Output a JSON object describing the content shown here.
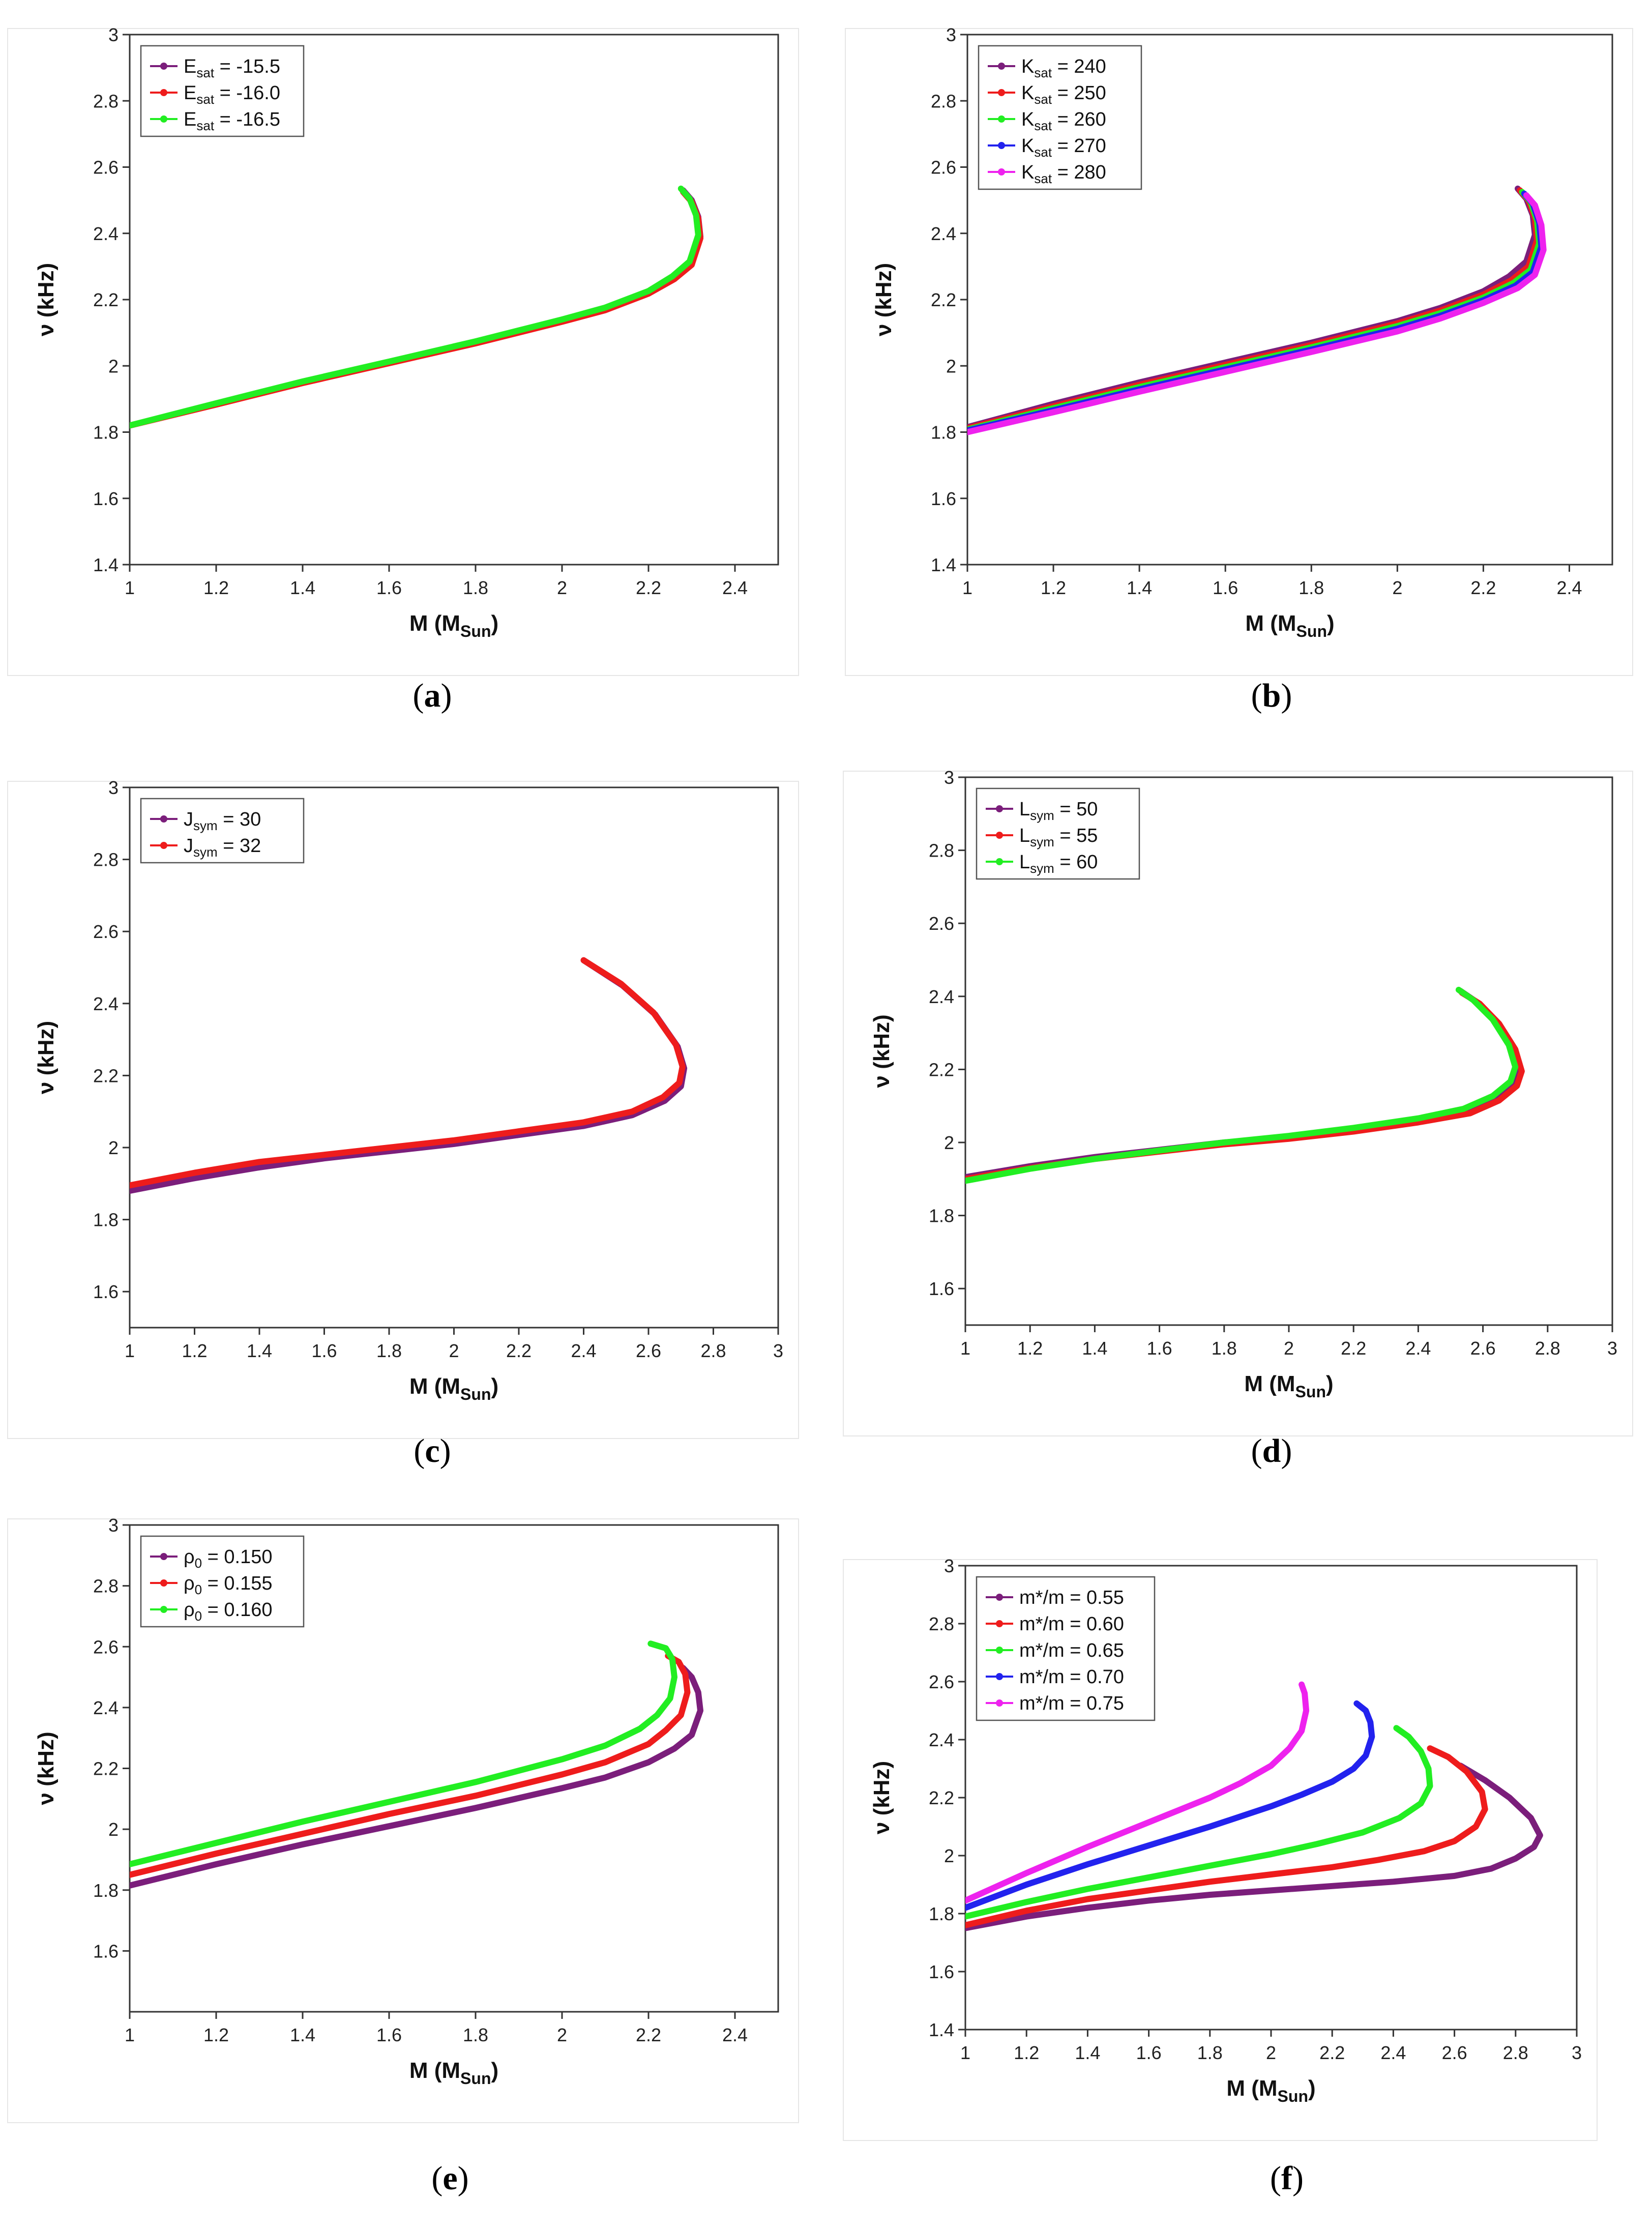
{
  "chart_data": [
    {
      "id": "a",
      "caption": "a",
      "type": "line",
      "xlabel": "M (M",
      "xlabel_sub": "Sun",
      "ylabel": "ν (kHz)",
      "xlim": [
        1,
        2.5
      ],
      "ylim": [
        1.4,
        3
      ],
      "xticks": [
        "1",
        "1.2",
        "1.4",
        "1.6",
        "1.8",
        "2",
        "2.2",
        "2.4"
      ],
      "yticks": [
        "1.4",
        "1.6",
        "1.8",
        "2",
        "2.2",
        "2.4",
        "2.6",
        "2.8",
        "3"
      ],
      "legend_position": "top-left",
      "series": [
        {
          "name": "E",
          "sub": "sat",
          "value": " = -15.5",
          "color": "#7b1e7b",
          "x": [
            1.0,
            1.2,
            1.4,
            1.6,
            1.8,
            2.0,
            2.1,
            2.2,
            2.26,
            2.3,
            2.32,
            2.315,
            2.3,
            2.28
          ],
          "y": [
            1.82,
            1.885,
            1.95,
            2.01,
            2.07,
            2.135,
            2.17,
            2.22,
            2.265,
            2.31,
            2.39,
            2.45,
            2.5,
            2.53
          ]
        },
        {
          "name": "E",
          "sub": "sat",
          "value": " = -16.0",
          "color": "#ee1c1c",
          "x": [
            1.0,
            1.2,
            1.4,
            1.6,
            1.8,
            2.0,
            2.1,
            2.2,
            2.26,
            2.3,
            2.32,
            2.315,
            2.3,
            2.28
          ],
          "y": [
            1.82,
            1.883,
            1.948,
            2.008,
            2.068,
            2.133,
            2.168,
            2.218,
            2.262,
            2.305,
            2.385,
            2.445,
            2.495,
            2.525
          ]
        },
        {
          "name": "E",
          "sub": "sat",
          "value": " = -16.5",
          "color": "#22ee22",
          "x": [
            1.0,
            1.2,
            1.4,
            1.6,
            1.8,
            2.0,
            2.1,
            2.2,
            2.255,
            2.295,
            2.315,
            2.31,
            2.295,
            2.275
          ],
          "y": [
            1.82,
            1.887,
            1.953,
            2.013,
            2.074,
            2.14,
            2.176,
            2.226,
            2.27,
            2.315,
            2.395,
            2.455,
            2.505,
            2.535
          ]
        }
      ]
    },
    {
      "id": "b",
      "caption": "b",
      "type": "line",
      "xlabel": "M (M",
      "xlabel_sub": "Sun",
      "ylabel": "ν (kHz)",
      "xlim": [
        1,
        2.5
      ],
      "ylim": [
        1.4,
        3
      ],
      "xticks": [
        "1",
        "1.2",
        "1.4",
        "1.6",
        "1.8",
        "2",
        "2.2",
        "2.4"
      ],
      "yticks": [
        "1.4",
        "1.6",
        "1.8",
        "2",
        "2.2",
        "2.4",
        "2.6",
        "2.8",
        "3"
      ],
      "legend_position": "top-left",
      "series": [
        {
          "name": "K",
          "sub": "sat",
          "value": " = 240",
          "color": "#7b1e7b",
          "x": [
            1.0,
            1.2,
            1.4,
            1.6,
            1.8,
            2.0,
            2.1,
            2.2,
            2.26,
            2.3,
            2.32,
            2.315,
            2.3,
            2.28
          ],
          "y": [
            1.815,
            1.885,
            1.95,
            2.01,
            2.07,
            2.135,
            2.175,
            2.225,
            2.27,
            2.315,
            2.395,
            2.455,
            2.505,
            2.535
          ]
        },
        {
          "name": "K",
          "sub": "sat",
          "value": " = 250",
          "color": "#ee1c1c",
          "x": [
            1.0,
            1.2,
            1.4,
            1.6,
            1.8,
            2.0,
            2.1,
            2.2,
            2.265,
            2.305,
            2.325,
            2.32,
            2.305,
            2.285
          ],
          "y": [
            1.812,
            1.878,
            1.943,
            2.003,
            2.063,
            2.128,
            2.167,
            2.215,
            2.258,
            2.3,
            2.38,
            2.445,
            2.5,
            2.53
          ]
        },
        {
          "name": "K",
          "sub": "sat",
          "value": " = 260",
          "color": "#22ee22",
          "x": [
            1.0,
            1.2,
            1.4,
            1.6,
            1.8,
            2.0,
            2.1,
            2.2,
            2.27,
            2.31,
            2.33,
            2.325,
            2.31,
            2.29
          ],
          "y": [
            1.808,
            1.872,
            1.936,
            1.996,
            2.056,
            2.12,
            2.159,
            2.206,
            2.25,
            2.29,
            2.37,
            2.438,
            2.495,
            2.525
          ]
        },
        {
          "name": "K",
          "sub": "sat",
          "value": " = 270",
          "color": "#2222ee",
          "x": [
            1.0,
            1.2,
            1.4,
            1.6,
            1.8,
            2.0,
            2.1,
            2.2,
            2.275,
            2.315,
            2.335,
            2.33,
            2.315,
            2.295
          ],
          "y": [
            1.805,
            1.866,
            1.929,
            1.989,
            2.049,
            2.112,
            2.151,
            2.198,
            2.242,
            2.283,
            2.36,
            2.432,
            2.49,
            2.52
          ]
        },
        {
          "name": "K",
          "sub": "sat",
          "value": " = 280",
          "color": "#ee22ee",
          "x": [
            1.0,
            1.2,
            1.4,
            1.6,
            1.8,
            2.0,
            2.1,
            2.2,
            2.28,
            2.32,
            2.34,
            2.335,
            2.32,
            2.3
          ],
          "y": [
            1.8,
            1.86,
            1.922,
            1.982,
            2.042,
            2.104,
            2.143,
            2.19,
            2.235,
            2.275,
            2.35,
            2.425,
            2.485,
            2.515
          ]
        }
      ]
    },
    {
      "id": "c",
      "caption": "c",
      "type": "line",
      "xlabel": "M (M",
      "xlabel_sub": "Sun",
      "ylabel": "ν (kHz)",
      "xlim": [
        1,
        3
      ],
      "ylim": [
        1.5,
        3
      ],
      "xticks": [
        "1",
        "1.2",
        "1.4",
        "1.6",
        "1.8",
        "2",
        "2.2",
        "2.4",
        "2.6",
        "2.8",
        "3"
      ],
      "yticks": [
        "1.6",
        "1.8",
        "2",
        "2.2",
        "2.4",
        "2.6",
        "2.8",
        "3"
      ],
      "legend_position": "top-left",
      "series": [
        {
          "name": "J",
          "sub": "sym",
          "value": " = 30",
          "color": "#7b1e7b",
          "x": [
            1.0,
            1.2,
            1.4,
            1.6,
            1.8,
            2.0,
            2.2,
            2.4,
            2.55,
            2.65,
            2.7,
            2.71,
            2.69,
            2.62,
            2.52,
            2.4
          ],
          "y": [
            1.88,
            1.915,
            1.945,
            1.97,
            1.99,
            2.01,
            2.035,
            2.06,
            2.09,
            2.13,
            2.17,
            2.22,
            2.28,
            2.37,
            2.45,
            2.52
          ]
        },
        {
          "name": "J",
          "sub": "sym",
          "value": " = 32",
          "color": "#ee1c1c",
          "x": [
            1.0,
            1.2,
            1.4,
            1.6,
            1.8,
            2.0,
            2.2,
            2.4,
            2.55,
            2.645,
            2.695,
            2.705,
            2.685,
            2.615,
            2.515,
            2.4
          ],
          "y": [
            1.895,
            1.93,
            1.96,
            1.98,
            2.0,
            2.02,
            2.045,
            2.07,
            2.1,
            2.14,
            2.18,
            2.225,
            2.285,
            2.375,
            2.455,
            2.52
          ]
        }
      ]
    },
    {
      "id": "d",
      "caption": "d",
      "type": "line",
      "xlabel": "M (M",
      "xlabel_sub": "Sun",
      "ylabel": "ν (kHz)",
      "xlim": [
        1,
        3
      ],
      "ylim": [
        1.5,
        3
      ],
      "xticks": [
        "1",
        "1.2",
        "1.4",
        "1.6",
        "1.8",
        "2",
        "2.2",
        "2.4",
        "2.6",
        "2.8",
        "3"
      ],
      "yticks": [
        "1.6",
        "1.8",
        "2",
        "2.2",
        "2.4",
        "2.6",
        "2.8",
        "3"
      ],
      "legend_position": "top-left",
      "series": [
        {
          "name": "L",
          "sub": "sym",
          "value": " = 50",
          "color": "#7b1e7b",
          "x": [
            1.0,
            1.2,
            1.4,
            1.6,
            1.8,
            2.0,
            2.2,
            2.4,
            2.55,
            2.64,
            2.695,
            2.71,
            2.69,
            2.64,
            2.58,
            2.53
          ],
          "y": [
            1.905,
            1.935,
            1.96,
            1.98,
            2.0,
            2.015,
            2.035,
            2.06,
            2.085,
            2.12,
            2.16,
            2.2,
            2.26,
            2.33,
            2.385,
            2.415
          ]
        },
        {
          "name": "L",
          "sub": "sym",
          "value": " = 55",
          "color": "#ee1c1c",
          "x": [
            1.0,
            1.2,
            1.4,
            1.6,
            1.8,
            2.0,
            2.2,
            2.4,
            2.56,
            2.65,
            2.705,
            2.72,
            2.7,
            2.65,
            2.59,
            2.535
          ],
          "y": [
            1.9,
            1.93,
            1.955,
            1.975,
            1.995,
            2.01,
            2.03,
            2.055,
            2.08,
            2.115,
            2.155,
            2.195,
            2.255,
            2.325,
            2.38,
            2.41
          ]
        },
        {
          "name": "L",
          "sub": "sym",
          "value": " = 60",
          "color": "#22ee22",
          "x": [
            1.0,
            1.2,
            1.4,
            1.6,
            1.8,
            2.0,
            2.2,
            2.4,
            2.54,
            2.63,
            2.685,
            2.7,
            2.68,
            2.63,
            2.57,
            2.525
          ],
          "y": [
            1.895,
            1.928,
            1.955,
            1.978,
            2.0,
            2.018,
            2.04,
            2.066,
            2.092,
            2.127,
            2.167,
            2.207,
            2.267,
            2.337,
            2.39,
            2.418
          ]
        }
      ]
    },
    {
      "id": "e",
      "caption": "e",
      "type": "line",
      "xlabel": "M (M",
      "xlabel_sub": "Sun",
      "ylabel": "ν (kHz)",
      "xlim": [
        1,
        2.5
      ],
      "ylim": [
        1.4,
        3
      ],
      "xticks": [
        "1",
        "1.2",
        "1.4",
        "1.6",
        "1.8",
        "2",
        "2.2",
        "2.4"
      ],
      "yticks": [
        "1.6",
        "1.8",
        "2",
        "2.2",
        "2.4",
        "2.6",
        "2.8",
        "3"
      ],
      "legend_position": "top-left",
      "series": [
        {
          "name": "ρ",
          "sub": "0",
          "value": " = 0.150",
          "color": "#7b1e7b",
          "x": [
            1.0,
            1.2,
            1.4,
            1.6,
            1.8,
            2.0,
            2.1,
            2.2,
            2.26,
            2.3,
            2.32,
            2.315,
            2.3,
            2.28
          ],
          "y": [
            1.815,
            1.885,
            1.95,
            2.01,
            2.07,
            2.135,
            2.17,
            2.22,
            2.265,
            2.31,
            2.39,
            2.45,
            2.5,
            2.53
          ]
        },
        {
          "name": "ρ",
          "sub": "0",
          "value": " = 0.155",
          "color": "#ee1c1c",
          "x": [
            1.0,
            1.2,
            1.4,
            1.6,
            1.8,
            2.0,
            2.1,
            2.2,
            2.24,
            2.275,
            2.29,
            2.285,
            2.27,
            2.245
          ],
          "y": [
            1.85,
            1.92,
            1.985,
            2.05,
            2.11,
            2.18,
            2.22,
            2.28,
            2.325,
            2.375,
            2.45,
            2.51,
            2.55,
            2.57
          ]
        },
        {
          "name": "ρ",
          "sub": "0",
          "value": " = 0.160",
          "color": "#22ee22",
          "x": [
            1.0,
            1.2,
            1.4,
            1.6,
            1.8,
            2.0,
            2.1,
            2.18,
            2.22,
            2.25,
            2.26,
            2.255,
            2.24,
            2.205
          ],
          "y": [
            1.885,
            1.955,
            2.025,
            2.09,
            2.155,
            2.23,
            2.275,
            2.33,
            2.375,
            2.43,
            2.5,
            2.56,
            2.595,
            2.61
          ]
        }
      ]
    },
    {
      "id": "f",
      "caption": "f",
      "type": "line",
      "xlabel": "M (M",
      "xlabel_sub": "Sun",
      "ylabel": "ν (kHz)",
      "xlim": [
        1,
        3
      ],
      "ylim": [
        1.4,
        3
      ],
      "xticks": [
        "1",
        "1.2",
        "1.4",
        "1.6",
        "1.8",
        "2",
        "2.2",
        "2.4",
        "2.6",
        "2.8",
        "3"
      ],
      "yticks": [
        "1.4",
        "1.6",
        "1.8",
        "2",
        "2.2",
        "2.4",
        "2.6",
        "2.8",
        "3"
      ],
      "legend_position": "top-left",
      "series": [
        {
          "name": "m*/m",
          "sub": "",
          "value": " = 0.55",
          "color": "#7b1e7b",
          "x": [
            1.0,
            1.2,
            1.4,
            1.6,
            1.8,
            2.0,
            2.2,
            2.4,
            2.6,
            2.72,
            2.8,
            2.86,
            2.88,
            2.85,
            2.78,
            2.7,
            2.62
          ],
          "y": [
            1.75,
            1.79,
            1.82,
            1.845,
            1.865,
            1.88,
            1.895,
            1.91,
            1.93,
            1.955,
            1.99,
            2.03,
            2.07,
            2.13,
            2.2,
            2.26,
            2.31
          ]
        },
        {
          "name": "m*/m",
          "sub": "",
          "value": " = 0.60",
          "color": "#ee1c1c",
          "x": [
            1.0,
            1.2,
            1.4,
            1.6,
            1.8,
            2.0,
            2.2,
            2.35,
            2.5,
            2.6,
            2.67,
            2.7,
            2.69,
            2.64,
            2.58,
            2.52
          ],
          "y": [
            1.76,
            1.81,
            1.85,
            1.88,
            1.91,
            1.935,
            1.96,
            1.985,
            2.015,
            2.05,
            2.1,
            2.16,
            2.22,
            2.29,
            2.34,
            2.37
          ]
        },
        {
          "name": "m*/m",
          "sub": "",
          "value": " = 0.65",
          "color": "#22ee22",
          "x": [
            1.0,
            1.2,
            1.4,
            1.6,
            1.8,
            2.0,
            2.15,
            2.3,
            2.42,
            2.49,
            2.52,
            2.515,
            2.49,
            2.45,
            2.41
          ],
          "y": [
            1.79,
            1.84,
            1.885,
            1.925,
            1.965,
            2.005,
            2.04,
            2.08,
            2.13,
            2.18,
            2.24,
            2.3,
            2.36,
            2.41,
            2.44
          ]
        },
        {
          "name": "m*/m",
          "sub": "",
          "value": " = 0.70",
          "color": "#2222ee",
          "x": [
            1.0,
            1.2,
            1.4,
            1.6,
            1.8,
            2.0,
            2.1,
            2.2,
            2.27,
            2.31,
            2.33,
            2.325,
            2.31,
            2.28
          ],
          "y": [
            1.82,
            1.9,
            1.97,
            2.035,
            2.1,
            2.17,
            2.21,
            2.255,
            2.3,
            2.345,
            2.41,
            2.46,
            2.5,
            2.525
          ]
        },
        {
          "name": "m*/m",
          "sub": "",
          "value": " = 0.75",
          "color": "#ee22ee",
          "x": [
            1.0,
            1.2,
            1.4,
            1.6,
            1.8,
            1.9,
            2.0,
            2.06,
            2.1,
            2.115,
            2.11,
            2.1
          ],
          "y": [
            1.845,
            1.94,
            2.03,
            2.115,
            2.2,
            2.25,
            2.31,
            2.37,
            2.43,
            2.5,
            2.56,
            2.59
          ]
        }
      ]
    }
  ]
}
